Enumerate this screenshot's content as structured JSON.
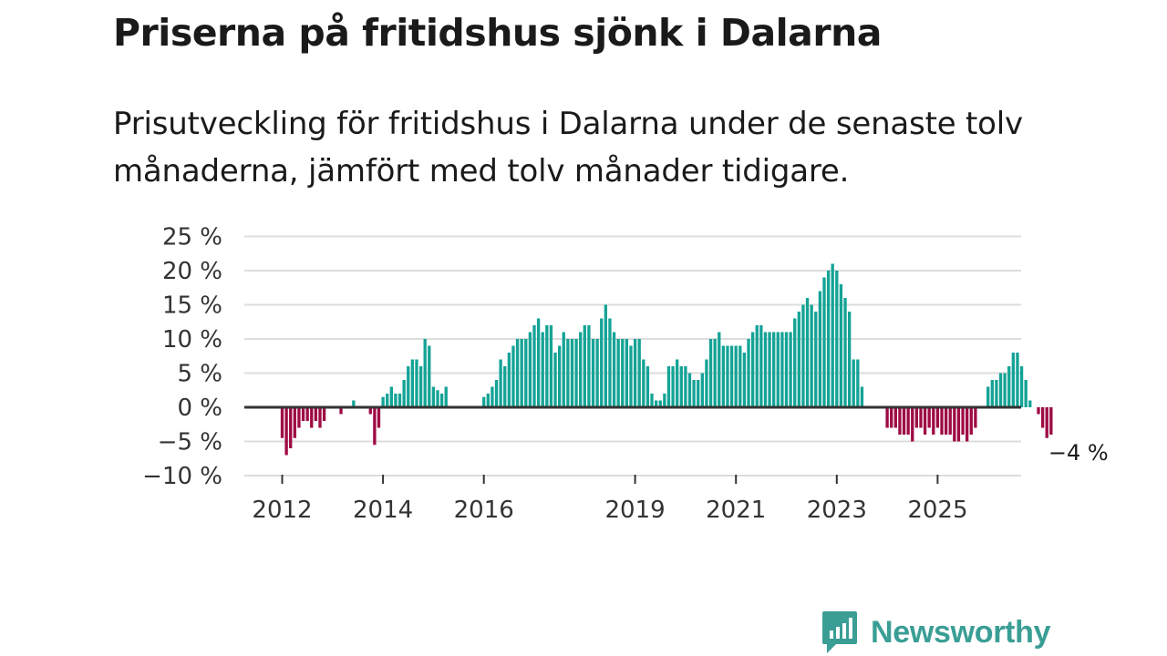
{
  "title": "Priserna på fritidshus sjönk i Dalarna",
  "subtitle": "Prisutveckling för fritidshus i Dalarna under de senaste tolv månaderna, jämfört med tolv månader tidigare.",
  "brand": {
    "name": "Newsworthy",
    "color": "#3a9e95"
  },
  "colors": {
    "positive": "#14a396",
    "negative": "#9e0a44",
    "zero_line": "#333333",
    "grid": "#dddddd"
  },
  "chart_data": {
    "type": "bar",
    "title": "Priserna på fritidshus sjönk i Dalarna",
    "xlabel": "",
    "ylabel": "",
    "ylim": [
      -10,
      25
    ],
    "y_ticks": [
      "25 %",
      "20 %",
      "15 %",
      "10 %",
      "5 %",
      "0 %",
      "−5 %",
      "−10 %"
    ],
    "y_tick_values": [
      25,
      20,
      15,
      10,
      5,
      0,
      -5,
      -10
    ],
    "x_tick_labels": [
      "2012",
      "2014",
      "2016",
      "2019",
      "2021",
      "2023",
      "2025"
    ],
    "start": "2012-01",
    "frequency": "monthly",
    "end_label": "−4 %",
    "values": [
      -4.5,
      -7,
      -6,
      -4.5,
      -3,
      -2,
      -2,
      -3,
      -2,
      -3,
      -2,
      0,
      0,
      0,
      -1,
      0,
      0,
      1,
      0,
      0,
      0,
      -1,
      -5.5,
      -3,
      1.5,
      2,
      3,
      2,
      2,
      4,
      6,
      7,
      7,
      6,
      10,
      9,
      3,
      2.5,
      2,
      3,
      0,
      0,
      0,
      0,
      0,
      0,
      0,
      0,
      1.5,
      2,
      3,
      4,
      7,
      6,
      8,
      9,
      10,
      10,
      10,
      11,
      12,
      13,
      11,
      12,
      12,
      8,
      9,
      11,
      10,
      10,
      10,
      11,
      12,
      12,
      10,
      10,
      13,
      15,
      13,
      11,
      10,
      10,
      10,
      9,
      10,
      10,
      7,
      6,
      2,
      1,
      1,
      2,
      6,
      6,
      7,
      6,
      6,
      5,
      4,
      4,
      5,
      7,
      10,
      10,
      11,
      9,
      9,
      9,
      9,
      9,
      8,
      10,
      11,
      12,
      12,
      11,
      11,
      11,
      11,
      11,
      11,
      11,
      13,
      14,
      15,
      16,
      15,
      14,
      17,
      19,
      20,
      21,
      20,
      18,
      16,
      14,
      7,
      7,
      3,
      0,
      0,
      0,
      0,
      0,
      -3,
      -3,
      -3,
      -4,
      -4,
      -4,
      -5,
      -3,
      -3,
      -4,
      -3,
      -4,
      -3,
      -4,
      -4,
      -4,
      -5,
      -5,
      -4,
      -5,
      -4,
      -3,
      0,
      0,
      3,
      4,
      4,
      5,
      5,
      6,
      8,
      8,
      6,
      4,
      1,
      0,
      -1,
      -3,
      -4.5,
      -4
    ]
  }
}
